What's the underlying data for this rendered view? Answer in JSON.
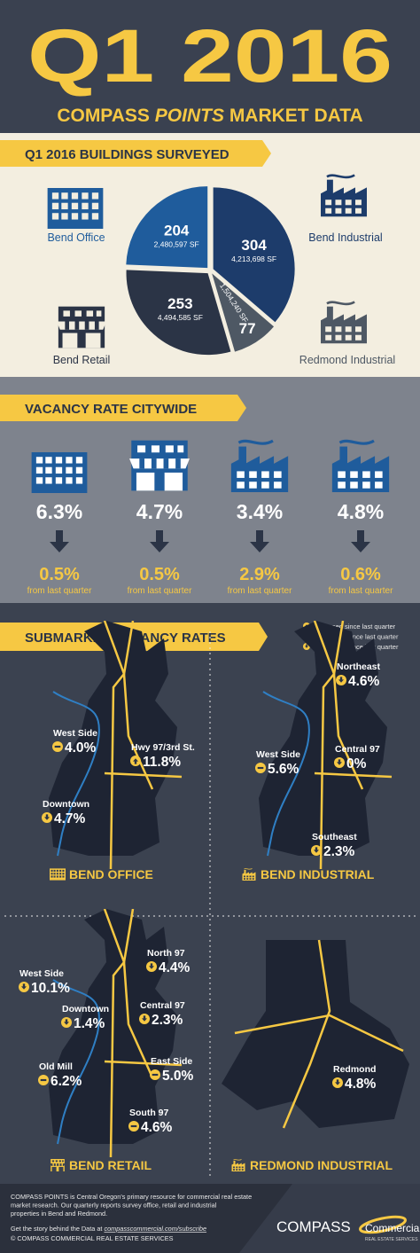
{
  "header": {
    "title": "Q1 2016",
    "subtitle_parts": [
      "COMPASS",
      "POINTS",
      "MARKET DATA"
    ]
  },
  "buildings": {
    "title": "Q1 2016 BUILDINGS SURVEYED"
  },
  "chart_data": {
    "type": "pie",
    "categories": [
      "Bend Industrial",
      "Redmond Industrial",
      "Bend Retail",
      "Bend Office"
    ],
    "values": [
      304,
      77,
      253,
      204
    ],
    "sf_labels": [
      "4,213,698 SF",
      "1,504,240 SF",
      "4,494,585 SF",
      "2,480,597 SF"
    ],
    "colors": [
      "#1d3c6b",
      "#4e5864",
      "#2b3446",
      "#1f5c9c"
    ]
  },
  "vacancy": {
    "title": "VACANCY RATE CITYWIDE",
    "items": [
      {
        "rate": "6.3%",
        "change": "0.5%",
        "note": "from last quarter"
      },
      {
        "rate": "4.7%",
        "change": "0.5%",
        "note": "from last quarter"
      },
      {
        "rate": "3.4%",
        "change": "2.9%",
        "note": "from last quarter"
      },
      {
        "rate": "4.8%",
        "change": "0.6%",
        "note": "from last quarter"
      }
    ]
  },
  "submarkets": {
    "title": "SUBMARKET VACANCY RATES",
    "legend": [
      {
        "trend": "up",
        "label": "Increased since last quarter"
      },
      {
        "trend": "flat",
        "label": "No change since last quarter"
      },
      {
        "trend": "down",
        "label": "Decreased since last quarter"
      }
    ],
    "maps": [
      {
        "caption": "BEND OFFICE",
        "areas": [
          {
            "name": "West Side",
            "rate": "4.0%",
            "trend": "flat"
          },
          {
            "name": "Hwy 97/3rd St.",
            "rate": "11.8%",
            "trend": "up"
          },
          {
            "name": "Downtown",
            "rate": "4.7%",
            "trend": "down"
          }
        ]
      },
      {
        "caption": "BEND INDUSTRIAL",
        "areas": [
          {
            "name": "Northeast",
            "rate": "4.6%",
            "trend": "down"
          },
          {
            "name": "West Side",
            "rate": "5.6%",
            "trend": "flat"
          },
          {
            "name": "Central 97",
            "rate": "0%",
            "trend": "down"
          },
          {
            "name": "Southeast",
            "rate": "2.3%",
            "trend": "down"
          }
        ]
      },
      {
        "caption": "BEND RETAIL",
        "areas": [
          {
            "name": "West Side",
            "rate": "10.1%",
            "trend": "down"
          },
          {
            "name": "North 97",
            "rate": "4.4%",
            "trend": "down"
          },
          {
            "name": "Downtown",
            "rate": "1.4%",
            "trend": "down"
          },
          {
            "name": "Central 97",
            "rate": "2.3%",
            "trend": "down"
          },
          {
            "name": "Old Mill",
            "rate": "6.2%",
            "trend": "flat"
          },
          {
            "name": "East Side",
            "rate": "5.0%",
            "trend": "flat"
          },
          {
            "name": "South 97",
            "rate": "4.6%",
            "trend": "flat"
          }
        ]
      },
      {
        "caption": "REDMOND INDUSTRIAL",
        "areas": [
          {
            "name": "Redmond",
            "rate": "4.8%",
            "trend": "down"
          }
        ]
      }
    ]
  },
  "footer": {
    "lines": [
      "COMPASS POINTS is Central Oregon's primary resource for commercial real estate",
      "market research. Our quarterly reports survey office, retail and industrial",
      "properties in Bend and Redmond."
    ],
    "cta": "Get the story behind the Data at",
    "link": "compasscommercial.com/subscribe",
    "copyright": "© COMPASS COMMERCIAL REAL ESTATE SERVICES",
    "logo": "COMPASS",
    "logo_word": "Commercial",
    "logo_sub": "REAL ESTATE SERVICES"
  }
}
